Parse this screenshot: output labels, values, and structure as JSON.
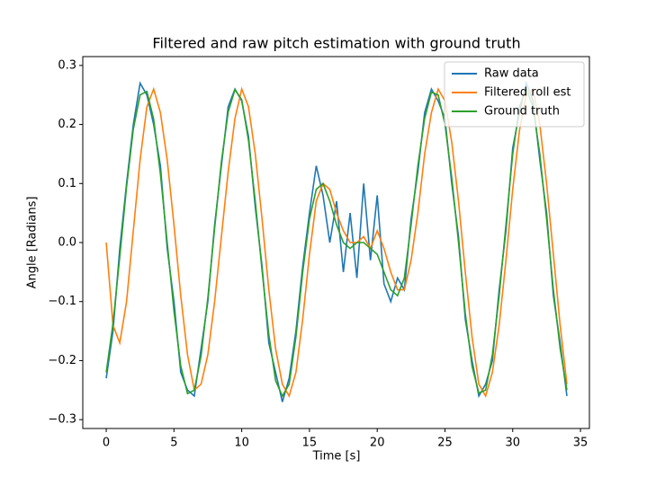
{
  "chart_data": {
    "type": "line",
    "title": "Filtered and raw pitch estimation with ground truth",
    "x_label": "Time [s]",
    "y_label": "Angle [Radians]",
    "x": [
      0,
      0.5,
      1,
      1.5,
      2,
      2.5,
      3,
      3.5,
      4,
      4.5,
      5,
      5.5,
      6,
      6.5,
      7,
      7.5,
      8,
      8.5,
      9,
      9.5,
      10,
      10.5,
      11,
      11.5,
      12,
      12.5,
      13,
      13.5,
      14,
      14.5,
      15,
      15.5,
      16,
      16.5,
      17,
      17.5,
      18,
      18.5,
      19,
      19.5,
      20,
      20.5,
      21,
      21.5,
      22,
      22.5,
      23,
      23.5,
      24,
      24.5,
      25,
      25.5,
      26,
      26.5,
      27,
      27.5,
      28,
      28.5,
      29,
      29.5,
      30,
      30.5,
      31,
      31.5,
      32,
      32.5,
      33,
      33.5,
      34
    ],
    "series": [
      {
        "name": "Raw data",
        "color": "#1f77b4",
        "values": [
          -0.23,
          -0.15,
          -0.01,
          0.1,
          0.2,
          0.27,
          0.25,
          0.2,
          0.13,
          -0.01,
          -0.1,
          -0.22,
          -0.25,
          -0.26,
          -0.18,
          -0.1,
          0.03,
          0.13,
          0.23,
          0.26,
          0.24,
          0.18,
          0.06,
          -0.04,
          -0.17,
          -0.22,
          -0.27,
          -0.23,
          -0.15,
          -0.04,
          0.05,
          0.13,
          0.08,
          0.0,
          0.07,
          -0.05,
          0.05,
          -0.06,
          0.1,
          -0.03,
          0.08,
          -0.07,
          -0.1,
          -0.06,
          -0.08,
          0.04,
          0.12,
          0.22,
          0.26,
          0.24,
          0.21,
          0.1,
          0.01,
          -0.13,
          -0.2,
          -0.26,
          -0.24,
          -0.2,
          -0.08,
          0.02,
          0.16,
          0.22,
          0.27,
          0.24,
          0.14,
          0.05,
          -0.09,
          -0.17,
          -0.26
        ]
      },
      {
        "name": "Filtered roll est",
        "color": "#ff7f0e",
        "values": [
          0.0,
          -0.14,
          -0.17,
          -0.1,
          0.02,
          0.14,
          0.23,
          0.26,
          0.22,
          0.14,
          0.03,
          -0.09,
          -0.19,
          -0.25,
          -0.24,
          -0.19,
          -0.1,
          0.01,
          0.12,
          0.21,
          0.26,
          0.23,
          0.15,
          0.04,
          -0.08,
          -0.18,
          -0.24,
          -0.26,
          -0.22,
          -0.13,
          -0.02,
          0.07,
          0.1,
          0.09,
          0.05,
          0.02,
          0.0,
          0.0,
          0.01,
          -0.01,
          0.02,
          -0.01,
          -0.05,
          -0.08,
          -0.08,
          -0.03,
          0.05,
          0.15,
          0.22,
          0.26,
          0.24,
          0.17,
          0.07,
          -0.05,
          -0.16,
          -0.24,
          -0.26,
          -0.22,
          -0.14,
          -0.03,
          0.09,
          0.19,
          0.25,
          0.26,
          0.2,
          0.1,
          -0.02,
          -0.14,
          -0.24
        ]
      },
      {
        "name": "Ground truth",
        "color": "#2ca02c",
        "values": [
          -0.22,
          -0.137,
          -0.024,
          0.094,
          0.192,
          0.25,
          0.256,
          0.209,
          0.116,
          0.0,
          -0.116,
          -0.209,
          -0.256,
          -0.25,
          -0.192,
          -0.094,
          0.024,
          0.137,
          0.221,
          0.259,
          0.242,
          0.173,
          0.07,
          -0.047,
          -0.156,
          -0.234,
          -0.26,
          -0.24,
          -0.16,
          -0.05,
          0.04,
          0.09,
          0.1,
          0.07,
          0.03,
          0.0,
          -0.01,
          0.0,
          0.0,
          -0.01,
          -0.02,
          -0.05,
          -0.08,
          -0.09,
          -0.06,
          0.03,
          0.13,
          0.21,
          0.255,
          0.25,
          0.2,
          0.11,
          0.0,
          -0.12,
          -0.21,
          -0.255,
          -0.25,
          -0.19,
          -0.09,
          0.03,
          0.15,
          0.23,
          0.26,
          0.23,
          0.15,
          0.04,
          -0.08,
          -0.18,
          -0.25
        ]
      }
    ],
    "xlim": [
      -1.73,
      35.66
    ],
    "ylim": [
      -0.315,
      0.315
    ],
    "xticks": [
      0,
      5,
      10,
      15,
      20,
      25,
      30,
      35
    ],
    "yticks": [
      {
        "value": -0.3,
        "label": "−0.3"
      },
      {
        "value": -0.2,
        "label": "−0.2"
      },
      {
        "value": -0.1,
        "label": "−0.1"
      },
      {
        "value": 0,
        "label": "0.0"
      },
      {
        "value": 0.1,
        "label": "0.1"
      },
      {
        "value": 0.2,
        "label": "0.2"
      },
      {
        "value": 0.3,
        "label": "0.3"
      }
    ],
    "legend": "upper right"
  }
}
